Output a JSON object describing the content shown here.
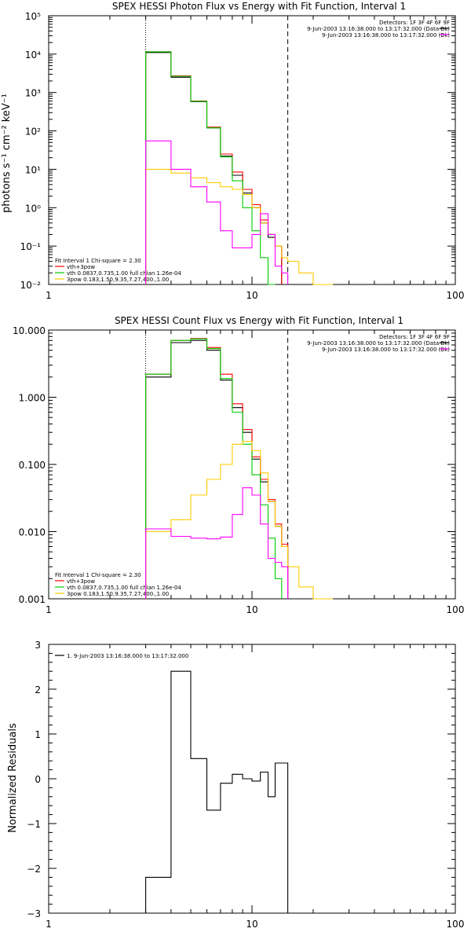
{
  "chart_data": [
    {
      "type": "line",
      "title": "SPEX HESSI Photon Flux vs Energy with Fit Function, Interval 1",
      "ylabel": "photons s⁻¹ cm⁻² keV⁻¹",
      "xlabel": "",
      "xscale": "log",
      "yscale": "log",
      "xlim": [
        1,
        100
      ],
      "ylim": [
        0.01,
        100000
      ],
      "x_ticks": [
        "1",
        "10",
        "100"
      ],
      "y_ticks": [
        "10⁻²",
        "10⁻¹",
        "10⁰",
        "10¹",
        "10²",
        "10³",
        "10⁴",
        "10⁵"
      ],
      "vlines": [
        {
          "x": 3,
          "style": "dotted"
        },
        {
          "x": 15,
          "style": "dashed"
        }
      ],
      "legend_top": [
        {
          "text": "Detectors: 1F 3F 4F 6F 9F"
        },
        {
          "text": "9-Jun-2003 13:16:38.000 to 13:17:32.000 (Data-Bk)",
          "color": "#000000"
        },
        {
          "text": "9-Jun-2003 13:16:38.000 to 13:17:32.000 (Bk)",
          "color": "#ff00ff"
        }
      ],
      "legend_bottom": [
        {
          "text": "Fit Interval 1   Chi-square = 2.30",
          "color": ""
        },
        {
          "text": "vth+3pow",
          "color": "#ff0000"
        },
        {
          "text": "vth 0.0837,0.735,1.00  full chian 1.26e-04",
          "color": "#00cc00"
        },
        {
          "text": "3pow 0.183,1.50,9.35,7.27,400.,1.00",
          "color": "#ffcc00"
        }
      ],
      "edges": [
        3,
        4,
        5,
        6,
        7,
        8,
        9,
        10,
        11,
        12,
        13,
        14,
        15,
        17,
        20,
        25
      ],
      "series": [
        {
          "name": "Data-Bk",
          "color": "#000000",
          "values": [
            11000,
            2500,
            580,
            120,
            22,
            7,
            2.4,
            1.0,
            0.4,
            0.17,
            0.1,
            null,
            null,
            null,
            null
          ]
        },
        {
          "name": "vth+3pow",
          "color": "#ff0000",
          "values": [
            11500,
            2700,
            600,
            125,
            25,
            8.5,
            3.0,
            1.2,
            0.48,
            0.2,
            0.1,
            null,
            null,
            null,
            null
          ]
        },
        {
          "name": "vth",
          "color": "#00cc00",
          "values": [
            11500,
            2650,
            590,
            120,
            21,
            5,
            1.0,
            0.25,
            0.05,
            0.01,
            null,
            null,
            null,
            null,
            null
          ]
        },
        {
          "name": "3pow",
          "color": "#ffcc00",
          "values": [
            10,
            8,
            6,
            4.5,
            3.5,
            3.0,
            2.2,
            1.0,
            0.4,
            0.2,
            0.1,
            0.05,
            0.04,
            0.02,
            0.01
          ]
        },
        {
          "name": "Bk",
          "color": "#ff00ff",
          "values": [
            55,
            10,
            3.5,
            1.4,
            0.25,
            0.09,
            0.09,
            0.2,
            0.7,
            0.2,
            0.03,
            0.02,
            null,
            null,
            null
          ]
        }
      ]
    },
    {
      "type": "line",
      "title": "SPEX HESSI Count Flux vs Energy with Fit Function, Interval 1",
      "ylabel": "",
      "xlabel": "",
      "xscale": "log",
      "yscale": "log",
      "xlim": [
        1,
        100
      ],
      "ylim": [
        0.001,
        10
      ],
      "x_ticks": [
        "1",
        "10",
        "100"
      ],
      "y_ticks": [
        "0.001",
        "0.010",
        "0.100",
        "1.000",
        "10.000"
      ],
      "vlines": [
        {
          "x": 3,
          "style": "dotted"
        },
        {
          "x": 15,
          "style": "dashed"
        }
      ],
      "legend_top": [
        {
          "text": "Detectors: 1F 3F 4F 6F 9F"
        },
        {
          "text": "9-Jun-2003 13:16:38.000 to 13:17:32.000 (Data-Bk)",
          "color": "#000000"
        },
        {
          "text": "9-Jun-2003 13:16:38.000 to 13:17:32.000 (Bk)",
          "color": "#ff00ff"
        }
      ],
      "legend_bottom": [
        {
          "text": "Fit Interval 1   Chi-square = 2.30",
          "color": ""
        },
        {
          "text": "vth+3pow",
          "color": "#ff0000"
        },
        {
          "text": "vth 0.0837,0.735,1.00  full chian 1.26e-04",
          "color": "#00cc00"
        },
        {
          "text": "3pow 0.183,1.50,9.35,7.27,400.,1.00",
          "color": "#ffcc00"
        }
      ],
      "edges": [
        3,
        4,
        5,
        6,
        7,
        8,
        9,
        10,
        11,
        12,
        13,
        14,
        15,
        17,
        20,
        25
      ],
      "series": [
        {
          "name": "Data-Bk",
          "color": "#000000",
          "values": [
            2.0,
            6.5,
            7.0,
            5.0,
            1.8,
            0.7,
            0.3,
            0.12,
            0.055,
            0.028,
            0.012,
            0.006,
            null,
            null,
            null
          ]
        },
        {
          "name": "vth+3pow",
          "color": "#ff0000",
          "values": [
            2.2,
            7.0,
            7.5,
            5.5,
            2.2,
            0.8,
            0.33,
            0.13,
            0.06,
            0.03,
            0.013,
            0.0065,
            null,
            null,
            null
          ]
        },
        {
          "name": "vth",
          "color": "#00cc00",
          "values": [
            2.2,
            7.0,
            7.4,
            5.3,
            1.9,
            0.6,
            0.2,
            0.07,
            0.025,
            0.008,
            0.002,
            null,
            null,
            null,
            null
          ]
        },
        {
          "name": "3pow",
          "color": "#ffcc00",
          "values": [
            0.01,
            0.015,
            0.035,
            0.06,
            0.1,
            0.2,
            0.22,
            0.16,
            0.075,
            0.028,
            0.012,
            0.006,
            0.003,
            0.0015,
            0.001
          ]
        },
        {
          "name": "Bk",
          "color": "#ff00ff",
          "values": [
            0.011,
            0.0085,
            0.008,
            0.0078,
            0.0083,
            0.018,
            0.045,
            0.035,
            0.013,
            0.004,
            0.0035,
            0.003,
            null,
            null,
            null
          ]
        }
      ]
    },
    {
      "type": "line",
      "title": "",
      "ylabel": "Normalized Residuals",
      "xlabel": "",
      "xscale": "log",
      "yscale": "linear",
      "xlim": [
        1,
        100
      ],
      "ylim": [
        -3,
        3
      ],
      "x_ticks": [
        "1",
        "10",
        "100"
      ],
      "y_ticks": [
        "−3",
        "−2",
        "−1",
        "0",
        "1",
        "2",
        "3"
      ],
      "legend_top": [
        {
          "text": "1.  9-Jun-2003 13:16:38.000 to 13:17:32.000",
          "color": "#000000"
        }
      ],
      "edges": [
        3,
        4,
        5,
        6,
        7,
        8,
        9,
        10,
        11,
        12,
        13,
        14,
        15
      ],
      "series": [
        {
          "name": "",
          "color": "#000000",
          "values": [
            -2.2,
            2.4,
            0.45,
            -0.7,
            -0.1,
            0.1,
            0.0,
            -0.05,
            0.15,
            -0.4,
            0.35,
            0.35
          ]
        }
      ]
    }
  ]
}
